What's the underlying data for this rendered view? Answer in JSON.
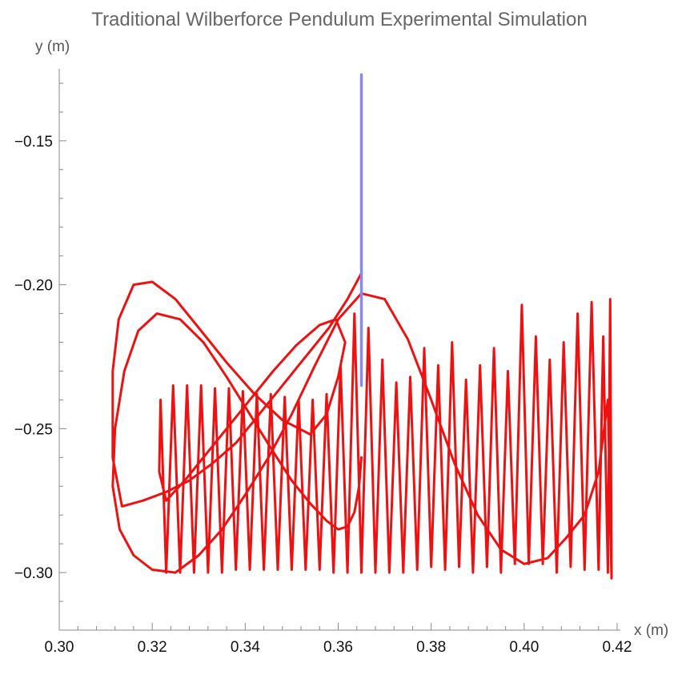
{
  "chart_data": {
    "type": "line",
    "title": "Traditional Wilberforce Pendulum Experimental Simulation",
    "xlabel": "x (m)",
    "ylabel": "y (m)",
    "xlim": [
      0.3,
      0.42
    ],
    "ylim": [
      -0.32,
      -0.125
    ],
    "x_ticks": [
      {
        "value": 0.3,
        "label": "0.30"
      },
      {
        "value": 0.32,
        "label": "0.32"
      },
      {
        "value": 0.34,
        "label": "0.34"
      },
      {
        "value": 0.36,
        "label": "0.36"
      },
      {
        "value": 0.38,
        "label": "0.38"
      },
      {
        "value": 0.4,
        "label": "0.40"
      },
      {
        "value": 0.42,
        "label": "0.42"
      }
    ],
    "y_ticks": [
      {
        "value": -0.15,
        "label": "−0.15"
      },
      {
        "value": -0.2,
        "label": "−0.20"
      },
      {
        "value": -0.25,
        "label": "−0.25"
      },
      {
        "value": -0.3,
        "label": "−0.30"
      }
    ],
    "grid": false,
    "series": [
      {
        "color": "#ee1111",
        "note_shape": "trajectory",
        "x": [
          0.365,
          0.362,
          0.358,
          0.353,
          0.348,
          0.343,
          0.338,
          0.333,
          0.328,
          0.323,
          0.318,
          0.3135,
          0.3115,
          0.3115,
          0.3128,
          0.316,
          0.32,
          0.325,
          0.33,
          0.336,
          0.342,
          0.348,
          0.354,
          0.3575,
          0.36,
          0.3615,
          0.3595,
          0.356,
          0.351,
          0.346,
          0.341,
          0.336,
          0.331,
          0.327,
          0.323,
          0.3215,
          0.3218,
          0.323,
          0.3245,
          0.326,
          0.3275,
          0.329,
          0.3305,
          0.332,
          0.3335,
          0.335,
          0.3365,
          0.338,
          0.3395,
          0.341,
          0.3425,
          0.344,
          0.3455,
          0.347,
          0.3485,
          0.35,
          0.3515,
          0.353,
          0.3545,
          0.356,
          0.3575,
          0.359,
          0.3605,
          0.362,
          0.3635,
          0.365,
          0.3665,
          0.368,
          0.3695,
          0.371,
          0.3725,
          0.374,
          0.3755,
          0.377,
          0.3785,
          0.38,
          0.3815,
          0.383,
          0.3845,
          0.386,
          0.3875,
          0.389,
          0.3905,
          0.392,
          0.3935,
          0.395,
          0.3965,
          0.398,
          0.3995,
          0.401,
          0.4025,
          0.404,
          0.4055,
          0.407,
          0.4085,
          0.41,
          0.4115,
          0.413,
          0.4145,
          0.416,
          0.417,
          0.418,
          0.4185,
          0.4188,
          0.418,
          0.416,
          0.413,
          0.409,
          0.405,
          0.4,
          0.395,
          0.39,
          0.385,
          0.38,
          0.375,
          0.37,
          0.365,
          0.36,
          0.355,
          0.35,
          0.345,
          0.34,
          0.335,
          0.33,
          0.325,
          0.32,
          0.316,
          0.313,
          0.3115,
          0.312,
          0.314,
          0.317,
          0.321,
          0.326,
          0.331,
          0.336,
          0.341,
          0.346,
          0.35,
          0.354,
          0.3575,
          0.36,
          0.362,
          0.3635,
          0.3645,
          0.365
        ],
        "y": [
          -0.196,
          -0.205,
          -0.215,
          -0.225,
          -0.235,
          -0.245,
          -0.255,
          -0.262,
          -0.268,
          -0.272,
          -0.275,
          -0.277,
          -0.26,
          -0.23,
          -0.212,
          -0.2,
          -0.199,
          -0.205,
          -0.215,
          -0.227,
          -0.238,
          -0.247,
          -0.252,
          -0.245,
          -0.232,
          -0.22,
          -0.212,
          -0.214,
          -0.221,
          -0.23,
          -0.24,
          -0.25,
          -0.26,
          -0.268,
          -0.275,
          -0.265,
          -0.24,
          -0.3,
          -0.235,
          -0.3,
          -0.235,
          -0.3,
          -0.235,
          -0.3,
          -0.236,
          -0.3,
          -0.236,
          -0.299,
          -0.237,
          -0.299,
          -0.238,
          -0.299,
          -0.238,
          -0.299,
          -0.239,
          -0.299,
          -0.24,
          -0.299,
          -0.24,
          -0.299,
          -0.238,
          -0.3,
          -0.228,
          -0.3,
          -0.21,
          -0.3,
          -0.215,
          -0.3,
          -0.226,
          -0.3,
          -0.234,
          -0.3,
          -0.232,
          -0.299,
          -0.222,
          -0.298,
          -0.228,
          -0.299,
          -0.22,
          -0.298,
          -0.233,
          -0.3,
          -0.228,
          -0.298,
          -0.222,
          -0.3,
          -0.23,
          -0.297,
          -0.207,
          -0.297,
          -0.218,
          -0.297,
          -0.226,
          -0.3,
          -0.22,
          -0.298,
          -0.21,
          -0.299,
          -0.206,
          -0.299,
          -0.218,
          -0.3,
          -0.205,
          -0.302,
          -0.24,
          -0.265,
          -0.28,
          -0.288,
          -0.295,
          -0.297,
          -0.292,
          -0.28,
          -0.262,
          -0.24,
          -0.219,
          -0.205,
          -0.203,
          -0.212,
          -0.228,
          -0.245,
          -0.26,
          -0.273,
          -0.285,
          -0.294,
          -0.3,
          -0.299,
          -0.294,
          -0.285,
          -0.27,
          -0.25,
          -0.23,
          -0.216,
          -0.21,
          -0.212,
          -0.22,
          -0.232,
          -0.245,
          -0.258,
          -0.268,
          -0.276,
          -0.282,
          -0.285,
          -0.284,
          -0.279,
          -0.27,
          -0.26
        ]
      },
      {
        "color": "#8888ee",
        "note_shape": "spring",
        "x": [
          0.365,
          0.365
        ],
        "y": [
          -0.127,
          -0.235
        ]
      }
    ]
  }
}
